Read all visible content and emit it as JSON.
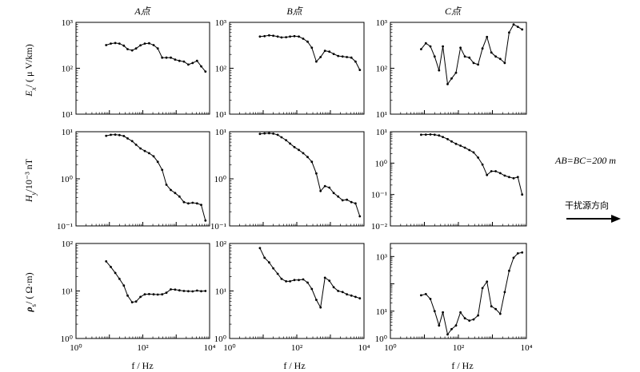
{
  "figure": {
    "columns": [
      "A点",
      "B点",
      "C点"
    ],
    "row_labels": [
      {
        "main": "E",
        "sub": "x",
        "rest": "/ ( μ V/km)"
      },
      {
        "main": "H",
        "sub": "y",
        "rest": "/10⁻³ nT"
      },
      {
        "main": "ρ",
        "sub": "s",
        "rest": "/ ( Ω·m)"
      }
    ],
    "xlabel": "f / Hz",
    "side_note": "AB=BC=200 m",
    "arrow_label": "干扰源方向"
  },
  "chart_data": [
    {
      "type": "line",
      "panel": "Ex-A",
      "log_x": true,
      "log_y": true,
      "xlim": [
        1,
        10000
      ],
      "ylim": [
        10,
        1000
      ],
      "yticks": [
        "10¹",
        "10²",
        "10³"
      ],
      "xticks": [],
      "x": [
        8,
        11,
        15,
        20,
        27,
        35,
        48,
        63,
        85,
        115,
        155,
        210,
        280,
        380,
        510,
        690,
        930,
        1250,
        1700,
        2300,
        3100,
        4200,
        5600,
        7500
      ],
      "y": [
        320,
        345,
        355,
        345,
        310,
        260,
        245,
        270,
        315,
        345,
        350,
        320,
        270,
        170,
        170,
        170,
        155,
        145,
        140,
        120,
        130,
        145,
        110,
        85
      ]
    },
    {
      "type": "line",
      "panel": "Ex-B",
      "log_x": true,
      "log_y": true,
      "xlim": [
        1,
        10000
      ],
      "ylim": [
        10,
        1000
      ],
      "yticks": [
        "10¹",
        "10²",
        "10³"
      ],
      "xticks": [],
      "x": [
        8,
        11,
        15,
        20,
        27,
        35,
        48,
        63,
        85,
        115,
        155,
        210,
        280,
        380,
        510,
        690,
        930,
        1250,
        1700,
        2300,
        3100,
        4200,
        5600,
        7500
      ],
      "y": [
        490,
        500,
        520,
        510,
        490,
        470,
        475,
        490,
        500,
        490,
        440,
        380,
        280,
        140,
        175,
        240,
        230,
        205,
        185,
        180,
        175,
        170,
        140,
        92
      ]
    },
    {
      "type": "line",
      "panel": "Ex-C",
      "log_x": true,
      "log_y": true,
      "xlim": [
        1,
        10000
      ],
      "ylim": [
        10,
        1000
      ],
      "yticks": [
        "10¹",
        "10²",
        "10³"
      ],
      "xticks": [],
      "x": [
        8,
        11,
        15,
        20,
        27,
        35,
        48,
        63,
        85,
        115,
        155,
        210,
        280,
        380,
        510,
        690,
        930,
        1250,
        1700,
        2300,
        3100,
        4200,
        5600,
        7500
      ],
      "y": [
        260,
        350,
        300,
        180,
        90,
        300,
        45,
        60,
        80,
        280,
        180,
        170,
        130,
        120,
        270,
        480,
        220,
        180,
        160,
        130,
        600,
        900,
        800,
        700
      ]
    },
    {
      "type": "line",
      "panel": "Hy-A",
      "log_x": true,
      "log_y": true,
      "xlim": [
        1,
        10000
      ],
      "ylim": [
        0.1,
        10
      ],
      "yticks": [
        "10⁻¹",
        "10⁰",
        "10¹"
      ],
      "xticks": [],
      "x": [
        8,
        11,
        15,
        20,
        27,
        35,
        48,
        63,
        85,
        115,
        155,
        210,
        280,
        380,
        510,
        690,
        930,
        1250,
        1700,
        2300,
        3100,
        4200,
        5600,
        7500
      ],
      "y": [
        8.2,
        8.6,
        8.7,
        8.5,
        8.1,
        7.2,
        6.3,
        5.3,
        4.4,
        3.9,
        3.5,
        3.0,
        2.3,
        1.55,
        0.75,
        0.58,
        0.5,
        0.42,
        0.32,
        0.3,
        0.31,
        0.3,
        0.28,
        0.13
      ]
    },
    {
      "type": "line",
      "panel": "Hy-B",
      "log_x": true,
      "log_y": true,
      "xlim": [
        1,
        10000
      ],
      "ylim": [
        0.1,
        10
      ],
      "yticks": [
        "10⁻¹",
        "10⁰",
        "10¹"
      ],
      "xticks": [],
      "x": [
        8,
        11,
        15,
        20,
        27,
        35,
        48,
        63,
        85,
        115,
        155,
        210,
        280,
        380,
        510,
        690,
        930,
        1250,
        1700,
        2300,
        3100,
        4200,
        5600,
        7500
      ],
      "y": [
        9.0,
        9.2,
        9.3,
        9.1,
        8.6,
        7.6,
        6.6,
        5.6,
        4.7,
        4.1,
        3.5,
        2.9,
        2.3,
        1.3,
        0.55,
        0.7,
        0.65,
        0.5,
        0.42,
        0.35,
        0.36,
        0.32,
        0.3,
        0.16
      ]
    },
    {
      "type": "line",
      "panel": "Hy-C",
      "log_x": true,
      "log_y": true,
      "xlim": [
        1,
        10000
      ],
      "ylim": [
        0.01,
        10
      ],
      "yticks": [
        "10⁻²",
        "10⁻¹",
        "10⁰",
        "10¹"
      ],
      "xticks": [],
      "x": [
        8,
        11,
        15,
        20,
        27,
        35,
        48,
        63,
        85,
        115,
        155,
        210,
        280,
        380,
        510,
        690,
        930,
        1250,
        1700,
        2300,
        3100,
        4200,
        5600,
        7500
      ],
      "y": [
        8.0,
        8.1,
        8.2,
        8.0,
        7.6,
        6.8,
        5.8,
        4.9,
        4.1,
        3.6,
        3.1,
        2.6,
        2.2,
        1.5,
        0.9,
        0.42,
        0.55,
        0.55,
        0.48,
        0.4,
        0.36,
        0.33,
        0.36,
        0.1
      ]
    },
    {
      "type": "line",
      "panel": "rho-A",
      "log_x": true,
      "log_y": true,
      "xlim": [
        1,
        10000
      ],
      "ylim": [
        1,
        100
      ],
      "yticks": [
        "10⁰",
        "10¹",
        "10²"
      ],
      "xticks": [
        "10⁰",
        "10²",
        "10⁴"
      ],
      "x": [
        8,
        11,
        15,
        20,
        27,
        35,
        48,
        63,
        85,
        115,
        155,
        210,
        280,
        380,
        510,
        690,
        930,
        1250,
        1700,
        2300,
        3100,
        4200,
        5600,
        7500
      ],
      "y": [
        42,
        32,
        24,
        18,
        13,
        8,
        5.8,
        6,
        7.5,
        8.5,
        8.6,
        8.5,
        8.4,
        8.5,
        9.2,
        10.8,
        10.7,
        10.3,
        10,
        9.9,
        9.8,
        10.2,
        9.9,
        10
      ]
    },
    {
      "type": "line",
      "panel": "rho-B",
      "log_x": true,
      "log_y": true,
      "xlim": [
        1,
        10000
      ],
      "ylim": [
        1,
        100
      ],
      "yticks": [
        "10⁰",
        "10¹",
        "10²"
      ],
      "xticks": [
        "10⁰",
        "10²",
        "10⁴"
      ],
      "x": [
        8,
        11,
        15,
        20,
        27,
        35,
        48,
        63,
        85,
        115,
        155,
        210,
        280,
        380,
        510,
        690,
        930,
        1250,
        1700,
        2300,
        3100,
        4200,
        5600,
        7500
      ],
      "y": [
        80,
        50,
        40,
        30,
        23,
        18,
        16,
        16,
        17,
        17,
        17.5,
        15,
        11,
        6.5,
        4.5,
        19,
        16.5,
        12,
        10,
        9.5,
        8.5,
        8,
        7.5,
        7
      ]
    },
    {
      "type": "line",
      "panel": "rho-C",
      "log_x": true,
      "log_y": true,
      "xlim": [
        1,
        10000
      ],
      "ylim": [
        1,
        3000
      ],
      "yticks": [
        "10⁰",
        "10¹",
        "10³"
      ],
      "xticks": [
        "10⁰",
        "10²",
        "10⁴"
      ],
      "x": [
        8,
        11,
        15,
        20,
        27,
        35,
        48,
        63,
        85,
        115,
        155,
        210,
        280,
        380,
        510,
        690,
        930,
        1250,
        1700,
        2300,
        3100,
        4200,
        5600,
        7500
      ],
      "y": [
        38,
        42,
        28,
        10,
        3,
        9,
        1.4,
        2.2,
        3,
        9,
        5.5,
        4.5,
        5,
        7,
        70,
        120,
        15,
        12,
        8,
        50,
        300,
        900,
        1300,
        1400
      ]
    }
  ]
}
